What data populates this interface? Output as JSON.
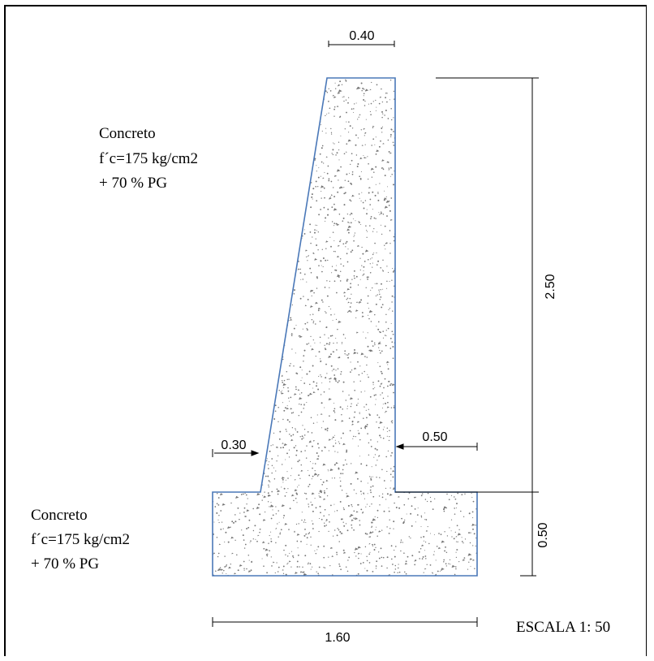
{
  "drawing": {
    "dimensions": {
      "top_width": "0.40",
      "height_stem": "2.50",
      "toe_projection": "0.30",
      "heel_projection": "0.50",
      "footing_thickness": "0.50",
      "base_width": "1.60"
    },
    "notes": {
      "stem": {
        "line1": "Concreto",
        "line2": "f´c=175 kg/cm2",
        "line3": "+ 70 % PG"
      },
      "footing": {
        "line1": "Concreto",
        "line2": "f´c=175 kg/cm2",
        "line3": "+ 70 % PG"
      }
    },
    "scale_label": "ESCALA 1: 50",
    "colors": {
      "outline": "#4a78b8",
      "hatch": "#777777",
      "line": "#000000"
    }
  }
}
